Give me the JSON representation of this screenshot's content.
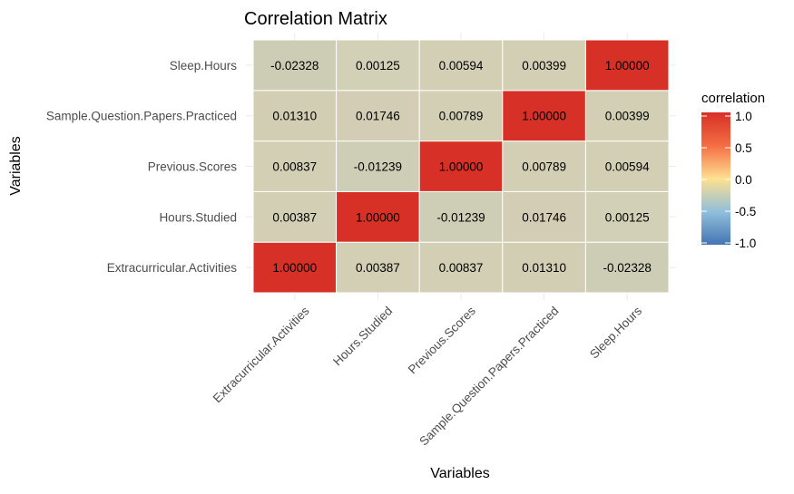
{
  "chart_data": {
    "type": "heatmap",
    "title": "Correlation Matrix",
    "xlabel": "Variables",
    "ylabel": "Variables",
    "x_categories": [
      "Extracurricular.Activities",
      "Hours.Studied",
      "Previous.Scores",
      "Sample.Question.Papers.Practiced",
      "Sleep.Hours"
    ],
    "y_categories": [
      "Extracurricular.Activities",
      "Hours.Studied",
      "Previous.Scores",
      "Sample.Question.Papers.Practiced",
      "Sleep.Hours"
    ],
    "values": [
      [
        1.0,
        0.00387,
        0.00837,
        0.0131,
        -0.02328
      ],
      [
        0.00387,
        1.0,
        -0.01239,
        0.01746,
        0.00125
      ],
      [
        0.00837,
        -0.01239,
        1.0,
        0.00789,
        0.00594
      ],
      [
        0.0131,
        0.01746,
        0.00789,
        1.0,
        0.00399
      ],
      [
        -0.02328,
        0.00125,
        0.00594,
        0.00399,
        1.0
      ]
    ],
    "cell_labels": [
      [
        "1.00000",
        "0.00387",
        "0.00837",
        "0.01310",
        "-0.02328"
      ],
      [
        "0.00387",
        "1.00000",
        "-0.01239",
        "0.01746",
        "0.00125"
      ],
      [
        "0.00837",
        "-0.01239",
        "1.00000",
        "0.00789",
        "0.00594"
      ],
      [
        "0.01310",
        "0.01746",
        "0.00789",
        "1.00000",
        "0.00399"
      ],
      [
        "-0.02328",
        "0.00125",
        "0.00594",
        "0.00399",
        "1.00000"
      ]
    ],
    "legend": {
      "title": "correlation",
      "ticks": [
        "1.0",
        "0.5",
        "0.0",
        "-0.5",
        "-1.0"
      ],
      "tick_values": [
        1.0,
        0.5,
        0.0,
        -0.5,
        -1.0
      ],
      "range": [
        -1.0,
        1.0
      ],
      "colors": {
        "low": "#4575b4",
        "mid": "#fee090",
        "high": "#d73027"
      },
      "placement": "right"
    },
    "grid": true
  }
}
